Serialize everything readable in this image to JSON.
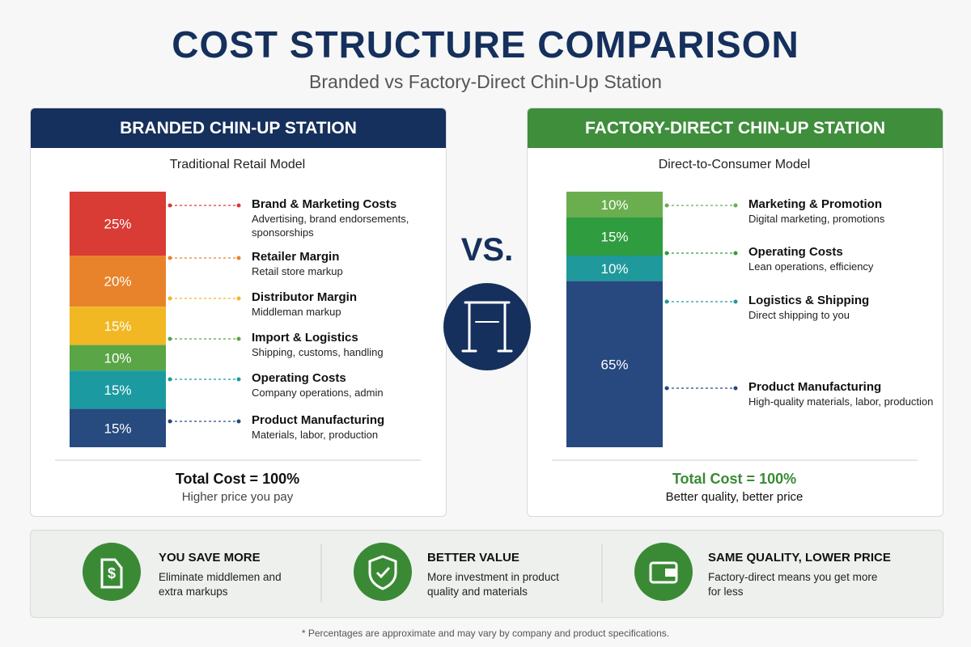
{
  "title": "COST STRUCTURE COMPARISON",
  "subtitle": "Branded vs Factory-Direct Chin-Up Station",
  "vs": "VS.",
  "chart_data": [
    {
      "type": "stacked-bar",
      "title": "BRANDED CHIN-UP STATION",
      "subtitle": "Traditional Retail Model",
      "categories": [
        "Brand & Marketing Costs",
        "Retailer Margin",
        "Distributor Margin",
        "Import & Logistics",
        "Operating Costs",
        "Product Manufacturing"
      ],
      "descriptions": [
        "Advertising, brand endorsements, sponsorships",
        "Retail store markup",
        "Middleman markup",
        "Shipping, customs, handling",
        "Company operations, admin",
        "Materials, labor, production"
      ],
      "values": [
        25,
        20,
        15,
        10,
        15,
        15
      ],
      "value_labels": [
        "25%",
        "20%",
        "15%",
        "10%",
        "15%",
        "15%"
      ],
      "colors": [
        "#d93b35",
        "#e8832b",
        "#f1b823",
        "#5aa545",
        "#1c9aa1",
        "#274a7f"
      ],
      "total": "Total Cost = 100%",
      "note": "Higher price you pay"
    },
    {
      "type": "stacked-bar",
      "title": "FACTORY-DIRECT CHIN-UP STATION",
      "subtitle": "Direct-to-Consumer Model",
      "categories": [
        "Marketing & Promotion",
        "Operating Costs",
        "Logistics & Shipping",
        "Product Manufacturing"
      ],
      "descriptions": [
        "Digital marketing, promotions",
        "Lean operations, efficiency",
        "Direct shipping to you",
        "High-quality materials, labor, production"
      ],
      "values": [
        10,
        15,
        10,
        65
      ],
      "value_labels": [
        "10%",
        "15%",
        "10%",
        "65%"
      ],
      "colors": [
        "#6aae4f",
        "#2f9c3f",
        "#1f999c",
        "#28497f"
      ],
      "total": "Total Cost = 100%",
      "note": "Better quality, better price"
    }
  ],
  "benefits": [
    {
      "title": "YOU SAVE MORE",
      "text": "Eliminate middlemen and extra markups"
    },
    {
      "title": "BETTER VALUE",
      "text": "More investment in product quality and materials"
    },
    {
      "title": "SAME QUALITY, LOWER PRICE",
      "text": "Factory-direct means you get more for less"
    }
  ],
  "footnote": "* Percentages are approximate and may vary by company and product specifications."
}
